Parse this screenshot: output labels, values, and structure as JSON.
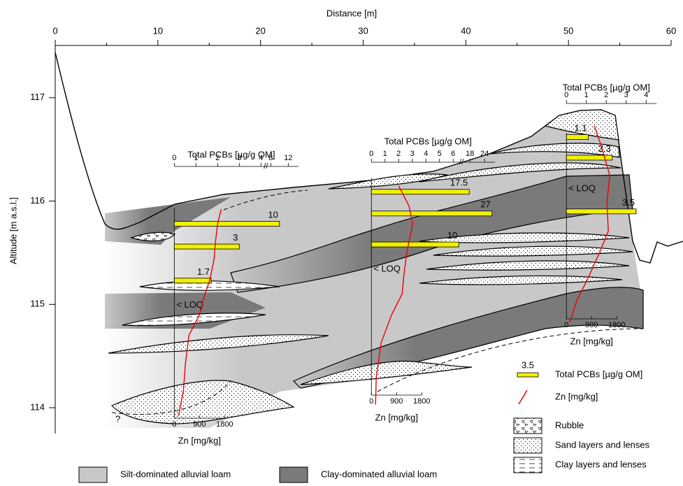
{
  "x_axis": {
    "label": "Distance [m]",
    "lim": [
      0,
      60
    ],
    "ticks": [
      0,
      10,
      20,
      30,
      40,
      50,
      60
    ]
  },
  "y_axis": {
    "label": "Altitude [m a.s.l.]",
    "lim": [
      113.75,
      117.54
    ],
    "ticks": [
      114,
      115,
      116,
      117
    ]
  },
  "unknown_mark": "?",
  "profiles": [
    {
      "distance": 11.6,
      "pcb_axis": {
        "label": "Total PCBs [µg/g OM]",
        "ticks": [
          0,
          1,
          2,
          3,
          4,
          8,
          12
        ]
      },
      "pcb_bars": [
        {
          "altitude": 115.78,
          "value": 10
        },
        {
          "altitude": 115.56,
          "value": 3
        },
        {
          "altitude": 115.23,
          "value": 1.7
        }
      ],
      "loq": [
        {
          "altitude": 114.99,
          "label": "< LOQ"
        }
      ],
      "zn_axis": {
        "label": "Zn [mg/kg]",
        "ticks": [
          0,
          900,
          1800
        ]
      },
      "zn": {
        "altitudes": [
          113.92,
          114.16,
          114.43,
          114.7,
          114.9,
          115.1,
          115.24,
          115.44,
          115.61,
          115.78,
          115.92
        ],
        "values": [
          150,
          325,
          400,
          525,
          900,
          1100,
          1275,
          1425,
          1475,
          1550,
          1675
        ]
      }
    },
    {
      "distance": 30.8,
      "pcb_axis": {
        "label": "Total PCBs [µg/g OM]",
        "ticks": [
          0,
          1,
          2,
          3,
          4,
          5,
          6,
          18,
          24
        ]
      },
      "pcb_bars": [
        {
          "altitude": 116.09,
          "value": 17.5
        },
        {
          "altitude": 115.88,
          "value": 27
        },
        {
          "altitude": 115.58,
          "value": 10
        }
      ],
      "loq": [
        {
          "altitude": 115.34,
          "label": "< LOQ"
        }
      ],
      "zn_axis": {
        "label": "Zn [mg/kg]",
        "ticks": [
          0,
          900,
          1800
        ]
      },
      "zn": {
        "altitudes": [
          114.03,
          114.29,
          114.63,
          114.9,
          115.1,
          115.31,
          115.51,
          115.78,
          115.95,
          116.15
        ],
        "values": [
          150,
          175,
          350,
          725,
          1100,
          1175,
          1275,
          1475,
          1350,
          975
        ]
      }
    },
    {
      "distance": 49.8,
      "pcb_axis": {
        "label": "Total PCBs [µg/g OM]",
        "ticks": [
          0,
          1,
          2,
          3,
          4
        ]
      },
      "pcb_bars": [
        {
          "altitude": 116.62,
          "value": 1.1
        },
        {
          "altitude": 116.42,
          "value": 2.3
        },
        {
          "altitude": 115.9,
          "value": 3.5
        }
      ],
      "loq": [
        {
          "altitude": 116.12,
          "label": "< LOQ"
        }
      ],
      "zn_axis": {
        "label": "Zn [mg/kg]",
        "ticks": [
          0,
          900,
          1800
        ]
      },
      "zn": {
        "altitudes": [
          114.83,
          115.04,
          115.24,
          115.51,
          115.71,
          115.98,
          116.25,
          116.53,
          116.73
        ],
        "values": [
          125,
          375,
          750,
          1200,
          1500,
          1450,
          1550,
          1250,
          1000
        ]
      }
    }
  ],
  "legend": {
    "pcb": {
      "sample": 3.5,
      "label": "Total PCBs [µg/g OM]"
    },
    "zn": "Zn [mg/kg]",
    "rubble": "Rubble",
    "sand": "Sand layers and lenses",
    "clay": "Clay layers and lenses",
    "silt_loam": "Silt-dominated alluvial loam",
    "clay_loam": "Clay-dominated alluvial loam"
  }
}
